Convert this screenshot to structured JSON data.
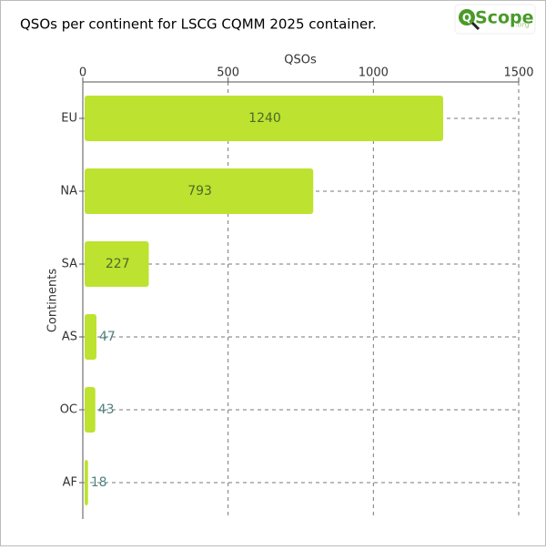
{
  "chart_data": {
    "type": "barh",
    "title": "QSOs per continent for LSCG CQMM 2025 container.",
    "logo": {
      "mark": "Q",
      "name": "Scope",
      "suffix": ".org"
    },
    "xlabel": "QSOs",
    "ylabel": "Continents",
    "categories": [
      "EU",
      "NA",
      "SA",
      "AS",
      "OC",
      "AF"
    ],
    "values": [
      1240,
      793,
      227,
      47,
      43,
      18
    ],
    "color": "#bde22f",
    "xlim": [
      0,
      1500
    ],
    "xticks": [
      0,
      500,
      1000,
      1500
    ],
    "grid": true
  }
}
